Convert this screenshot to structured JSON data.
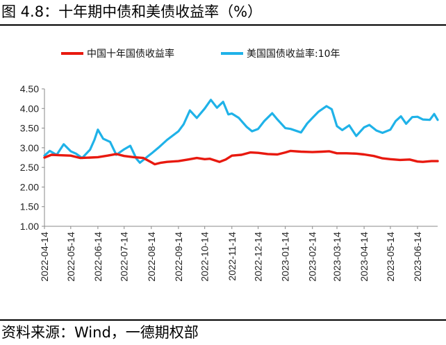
{
  "figure": {
    "title": "图 4.8：十年期中债和美债收益率（%）",
    "source": "资料来源：Wind，一德期权部"
  },
  "colors": {
    "china": "#e8190f",
    "us": "#1fb2e8",
    "axis": "#888888"
  },
  "chart_data": {
    "type": "line",
    "title": "",
    "xlabel": "",
    "ylabel": "",
    "ylim": [
      1.0,
      4.5
    ],
    "yticks": [
      "4.50",
      "4.00",
      "3.50",
      "3.00",
      "2.50",
      "2.00",
      "1.50",
      "1.00"
    ],
    "xticks": [
      "2022-04-14",
      "2022-05-14",
      "2022-06-14",
      "2022-07-14",
      "2022-08-14",
      "2022-09-14",
      "2022-10-14",
      "2022-11-14",
      "2022-12-14",
      "2023-01-14",
      "2023-02-14",
      "2023-03-14",
      "2023-04-14",
      "2023-05-14",
      "2023-06-14"
    ],
    "grid": false,
    "legend_position": "top",
    "x_range": [
      "2022-04-14",
      "2023-07-07"
    ],
    "series": [
      {
        "name": "中国十年国债收益率",
        "color_key": "china",
        "points": [
          [
            "2022-04-14",
            2.75
          ],
          [
            "2022-04-22",
            2.82
          ],
          [
            "2022-05-01",
            2.81
          ],
          [
            "2022-05-14",
            2.8
          ],
          [
            "2022-05-25",
            2.74
          ],
          [
            "2022-06-05",
            2.75
          ],
          [
            "2022-06-14",
            2.76
          ],
          [
            "2022-06-25",
            2.8
          ],
          [
            "2022-07-05",
            2.84
          ],
          [
            "2022-07-14",
            2.79
          ],
          [
            "2022-07-25",
            2.76
          ],
          [
            "2022-08-05",
            2.74
          ],
          [
            "2022-08-14",
            2.63
          ],
          [
            "2022-08-18",
            2.58
          ],
          [
            "2022-08-25",
            2.62
          ],
          [
            "2022-09-01",
            2.64
          ],
          [
            "2022-09-14",
            2.66
          ],
          [
            "2022-09-25",
            2.7
          ],
          [
            "2022-10-05",
            2.74
          ],
          [
            "2022-10-14",
            2.71
          ],
          [
            "2022-10-20",
            2.72
          ],
          [
            "2022-10-31",
            2.64
          ],
          [
            "2022-11-07",
            2.7
          ],
          [
            "2022-11-14",
            2.8
          ],
          [
            "2022-11-25",
            2.82
          ],
          [
            "2022-12-05",
            2.88
          ],
          [
            "2022-12-14",
            2.87
          ],
          [
            "2022-12-25",
            2.84
          ],
          [
            "2023-01-05",
            2.83
          ],
          [
            "2023-01-14",
            2.88
          ],
          [
            "2023-01-20",
            2.92
          ],
          [
            "2023-02-01",
            2.9
          ],
          [
            "2023-02-14",
            2.89
          ],
          [
            "2023-02-25",
            2.9
          ],
          [
            "2023-03-05",
            2.91
          ],
          [
            "2023-03-14",
            2.86
          ],
          [
            "2023-03-25",
            2.86
          ],
          [
            "2023-04-05",
            2.85
          ],
          [
            "2023-04-14",
            2.83
          ],
          [
            "2023-04-25",
            2.79
          ],
          [
            "2023-05-05",
            2.73
          ],
          [
            "2023-05-14",
            2.71
          ],
          [
            "2023-05-25",
            2.69
          ],
          [
            "2023-06-05",
            2.7
          ],
          [
            "2023-06-14",
            2.65
          ],
          [
            "2023-06-20",
            2.64
          ],
          [
            "2023-06-30",
            2.66
          ],
          [
            "2023-07-07",
            2.66
          ]
        ]
      },
      {
        "name": "美国国债收益率:10年",
        "color_key": "us",
        "points": [
          [
            "2022-04-14",
            2.8
          ],
          [
            "2022-04-20",
            2.92
          ],
          [
            "2022-04-28",
            2.82
          ],
          [
            "2022-05-06",
            3.09
          ],
          [
            "2022-05-14",
            2.91
          ],
          [
            "2022-05-20",
            2.85
          ],
          [
            "2022-05-27",
            2.74
          ],
          [
            "2022-06-05",
            2.95
          ],
          [
            "2022-06-10",
            3.2
          ],
          [
            "2022-06-14",
            3.46
          ],
          [
            "2022-06-20",
            3.23
          ],
          [
            "2022-06-28",
            3.15
          ],
          [
            "2022-07-05",
            2.82
          ],
          [
            "2022-07-14",
            2.96
          ],
          [
            "2022-07-21",
            3.05
          ],
          [
            "2022-07-28",
            2.72
          ],
          [
            "2022-08-01",
            2.62
          ],
          [
            "2022-08-10",
            2.78
          ],
          [
            "2022-08-14",
            2.85
          ],
          [
            "2022-08-22",
            3.0
          ],
          [
            "2022-09-01",
            3.2
          ],
          [
            "2022-09-14",
            3.42
          ],
          [
            "2022-09-20",
            3.6
          ],
          [
            "2022-09-27",
            3.95
          ],
          [
            "2022-10-05",
            3.76
          ],
          [
            "2022-10-14",
            4.0
          ],
          [
            "2022-10-21",
            4.22
          ],
          [
            "2022-10-28",
            4.02
          ],
          [
            "2022-11-04",
            4.17
          ],
          [
            "2022-11-10",
            3.85
          ],
          [
            "2022-11-14",
            3.87
          ],
          [
            "2022-11-22",
            3.76
          ],
          [
            "2022-12-01",
            3.53
          ],
          [
            "2022-12-07",
            3.42
          ],
          [
            "2022-12-14",
            3.48
          ],
          [
            "2022-12-21",
            3.68
          ],
          [
            "2022-12-30",
            3.88
          ],
          [
            "2023-01-05",
            3.72
          ],
          [
            "2023-01-14",
            3.5
          ],
          [
            "2023-01-20",
            3.48
          ],
          [
            "2023-02-01",
            3.39
          ],
          [
            "2023-02-08",
            3.62
          ],
          [
            "2023-02-14",
            3.76
          ],
          [
            "2023-02-21",
            3.92
          ],
          [
            "2023-03-02",
            4.06
          ],
          [
            "2023-03-08",
            3.98
          ],
          [
            "2023-03-14",
            3.55
          ],
          [
            "2023-03-20",
            3.45
          ],
          [
            "2023-03-28",
            3.57
          ],
          [
            "2023-04-05",
            3.3
          ],
          [
            "2023-04-14",
            3.52
          ],
          [
            "2023-04-20",
            3.58
          ],
          [
            "2023-04-28",
            3.44
          ],
          [
            "2023-05-05",
            3.38
          ],
          [
            "2023-05-14",
            3.46
          ],
          [
            "2023-05-20",
            3.68
          ],
          [
            "2023-05-26",
            3.8
          ],
          [
            "2023-06-01",
            3.61
          ],
          [
            "2023-06-08",
            3.78
          ],
          [
            "2023-06-14",
            3.79
          ],
          [
            "2023-06-20",
            3.72
          ],
          [
            "2023-06-28",
            3.71
          ],
          [
            "2023-07-03",
            3.86
          ],
          [
            "2023-07-07",
            3.71
          ]
        ]
      }
    ]
  }
}
